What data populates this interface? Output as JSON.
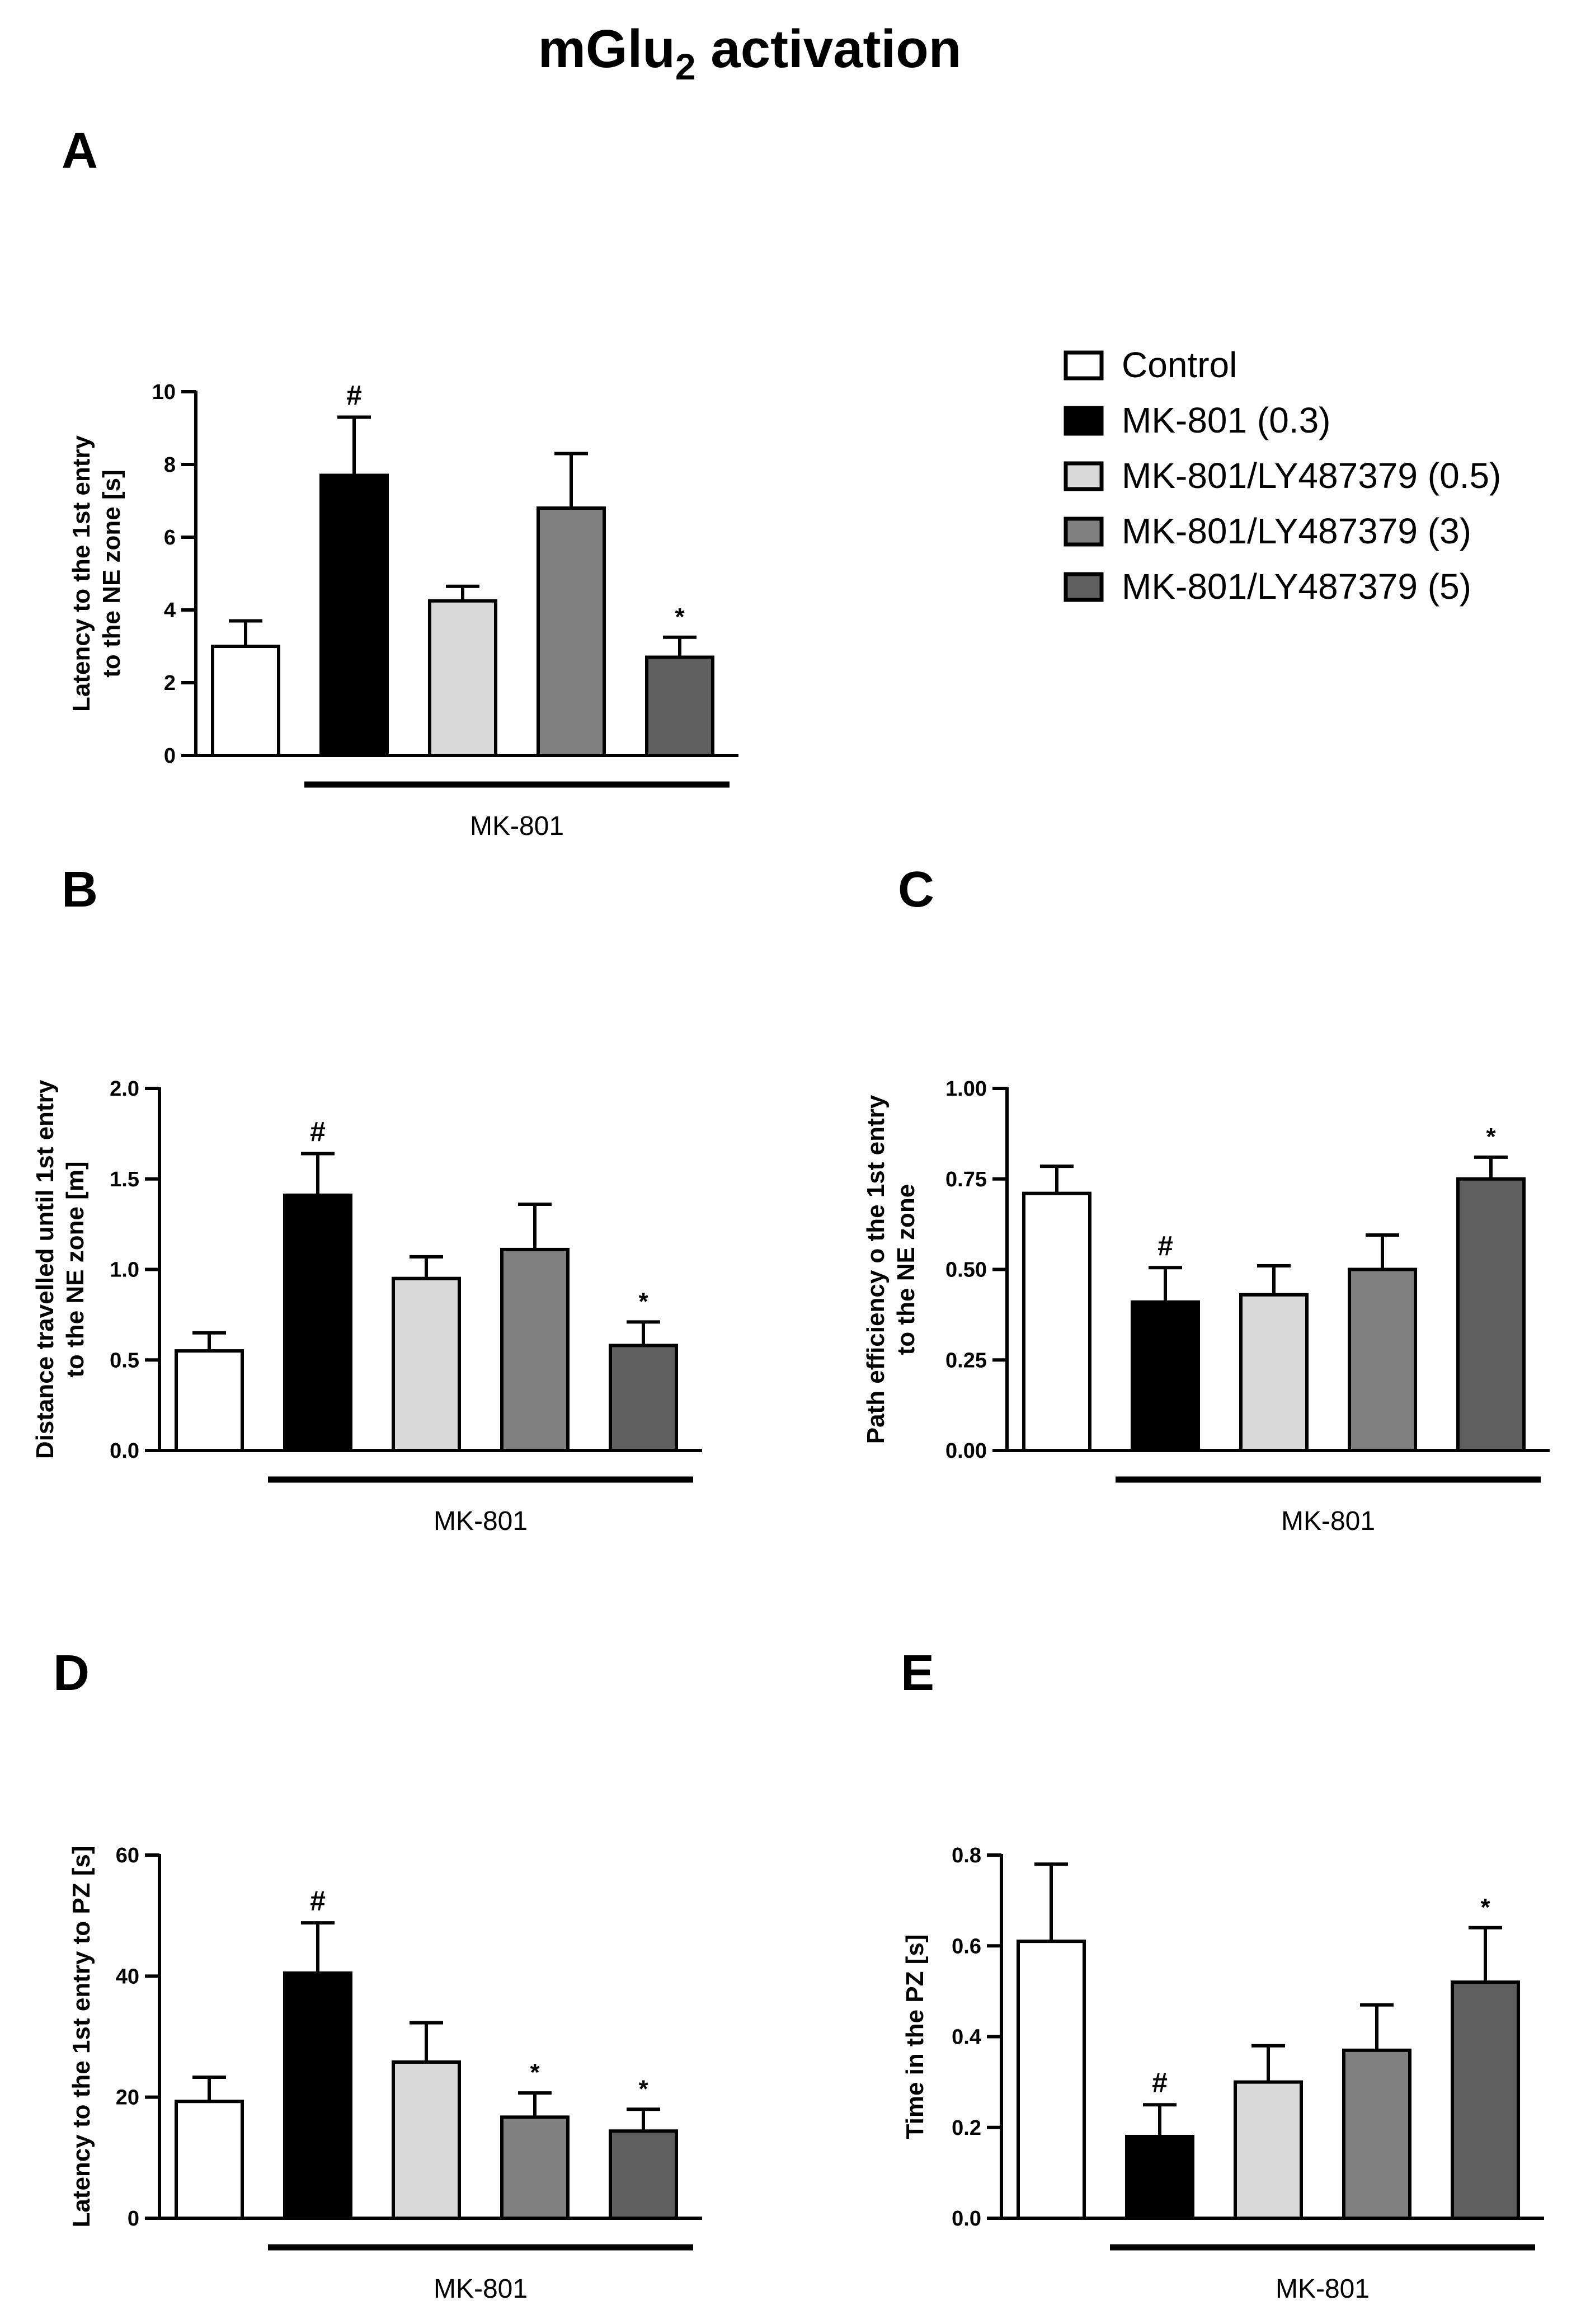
{
  "figure_title": {
    "main": "mGlu",
    "subscript": "2",
    "suffix": " activation"
  },
  "colors": {
    "Control": "#ffffff",
    "MK-801 (0.3)": "#000000",
    "MK-801/LY487379 (0.5)": "#d9d9d9",
    "MK-801/LY487379 (3)": "#808080",
    "MK-801/LY487379 (5)": "#5f5f5f",
    "stroke": "#000000"
  },
  "legend": {
    "placement": "top-right",
    "entries": [
      "Control",
      "MK-801 (0.3)",
      "MK-801/LY487379 (0.5)",
      "MK-801/LY487379 (3)",
      "MK-801/LY487379 (5)"
    ]
  },
  "chart_data": [
    {
      "panel": "A",
      "type": "bar",
      "ylabel": [
        "Latency to the 1st entry",
        "to the NE zone [s]"
      ],
      "ylim": [
        0,
        10
      ],
      "yticks": [
        0,
        2,
        4,
        6,
        8,
        10
      ],
      "ytick_labels": [
        "0",
        "2",
        "4",
        "6",
        "8",
        "10"
      ],
      "categories": [
        "Control",
        "MK-801 (0.3)",
        "MK-801/LY487379 (0.5)",
        "MK-801/LY487379 (3)",
        "MK-801/LY487379 (5)"
      ],
      "values": [
        3.0,
        7.7,
        4.25,
        6.8,
        2.7
      ],
      "errors": [
        0.7,
        1.6,
        0.4,
        1.5,
        0.55
      ],
      "significance": [
        "",
        "#",
        "",
        "",
        "*"
      ],
      "group_label": "MK-801"
    },
    {
      "panel": "B",
      "type": "bar",
      "ylabel": [
        "Distance travelled until 1st entry",
        "to the NE zone [m]"
      ],
      "ylim": [
        0,
        2.0
      ],
      "yticks": [
        0,
        0.5,
        1.0,
        1.5,
        2.0
      ],
      "ytick_labels": [
        "0.0",
        "0.5",
        "1.0",
        "1.5",
        "2.0"
      ],
      "categories": [
        "Control",
        "MK-801 (0.3)",
        "MK-801/LY487379 (0.5)",
        "MK-801/LY487379 (3)",
        "MK-801/LY487379 (5)"
      ],
      "values": [
        0.55,
        1.41,
        0.95,
        1.11,
        0.58
      ],
      "errors": [
        0.1,
        0.23,
        0.12,
        0.25,
        0.13
      ],
      "significance": [
        "",
        "#",
        "",
        "",
        "*"
      ],
      "group_label": "MK-801"
    },
    {
      "panel": "C",
      "type": "bar",
      "ylabel": [
        "Path efficiency o the 1st entry",
        "to the NE zone"
      ],
      "ylim": [
        0,
        1.0
      ],
      "yticks": [
        0,
        0.25,
        0.5,
        0.75,
        1.0
      ],
      "ytick_labels": [
        "0.00",
        "0.25",
        "0.50",
        "0.75",
        "1.00"
      ],
      "categories": [
        "Control",
        "MK-801 (0.3)",
        "MK-801/LY487379 (0.5)",
        "MK-801/LY487379 (3)",
        "MK-801/LY487379 (5)"
      ],
      "values": [
        0.71,
        0.41,
        0.43,
        0.5,
        0.75
      ],
      "errors": [
        0.075,
        0.095,
        0.08,
        0.095,
        0.06
      ],
      "significance": [
        "",
        "#",
        "",
        "",
        "*"
      ],
      "group_label": "MK-801"
    },
    {
      "panel": "D",
      "type": "bar",
      "ylabel": [
        "Latency to the 1st entry to PZ [s]"
      ],
      "ylim": [
        0,
        60
      ],
      "yticks": [
        0,
        20,
        40,
        60
      ],
      "ytick_labels": [
        "0",
        "20",
        "40",
        "60"
      ],
      "categories": [
        "Control",
        "MK-801 (0.3)",
        "MK-801/LY487379 (0.5)",
        "MK-801/LY487379 (3)",
        "MK-801/LY487379 (5)"
      ],
      "values": [
        19.3,
        40.5,
        25.8,
        16.7,
        14.4
      ],
      "errors": [
        4.0,
        8.3,
        6.5,
        4.0,
        3.6
      ],
      "significance": [
        "",
        "#",
        "",
        "*",
        "*"
      ],
      "group_label": "MK-801"
    },
    {
      "panel": "E",
      "type": "bar",
      "ylabel": [
        "Time in the PZ [s]"
      ],
      "ylim": [
        0,
        0.8
      ],
      "yticks": [
        0,
        0.2,
        0.4,
        0.6,
        0.8
      ],
      "ytick_labels": [
        "0.0",
        "0.2",
        "0.4",
        "0.6",
        "0.8"
      ],
      "categories": [
        "Control",
        "MK-801 (0.3)",
        "MK-801/LY487379 (0.5)",
        "MK-801/LY487379 (3)",
        "MK-801/LY487379 (5)"
      ],
      "values": [
        0.61,
        0.18,
        0.3,
        0.37,
        0.52
      ],
      "errors": [
        0.17,
        0.07,
        0.08,
        0.1,
        0.12
      ],
      "significance": [
        "",
        "#",
        "",
        "",
        "*"
      ],
      "group_label": "MK-801"
    }
  ]
}
